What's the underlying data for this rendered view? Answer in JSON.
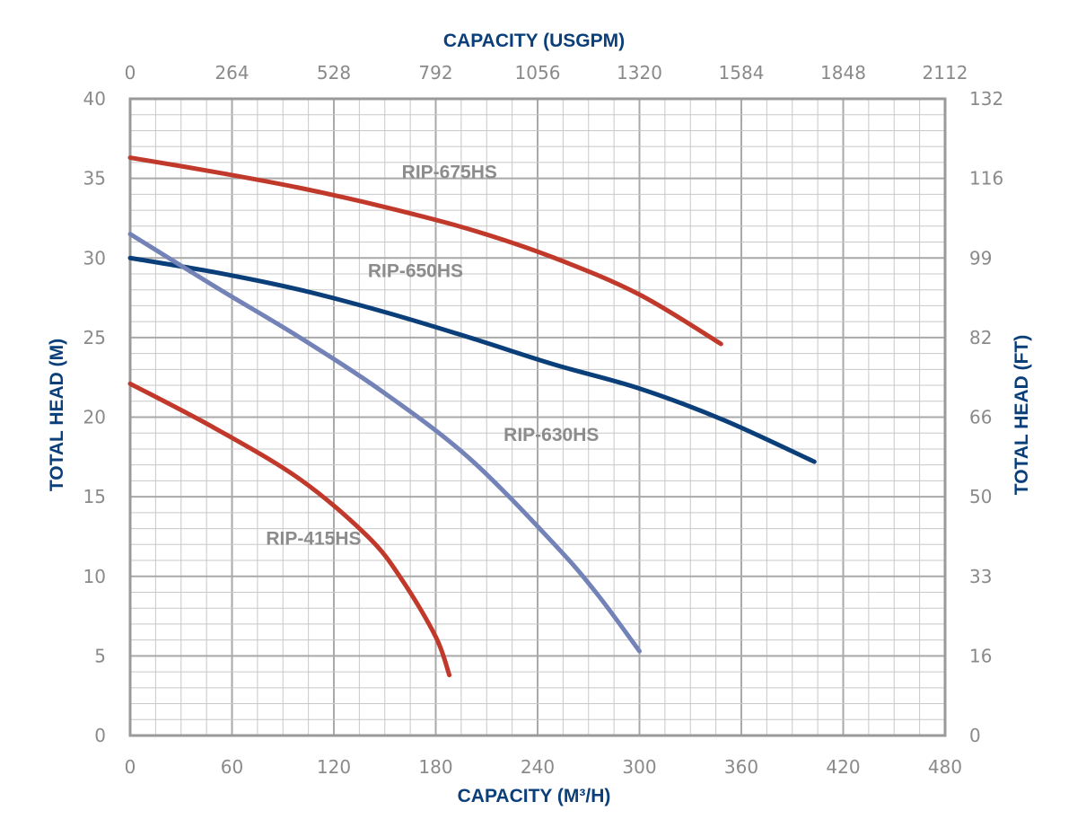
{
  "chart_data": {
    "type": "line",
    "title": "",
    "xlabel_bottom": "CAPACITY (M³/H)",
    "xlabel_top": "CAPACITY (USGPM)",
    "ylabel_left": "TOTAL HEAD (M)",
    "ylabel_right": "TOTAL HEAD (FT)",
    "xlim": [
      0,
      480
    ],
    "ylim": [
      0,
      40
    ],
    "x_ticks": [
      "0",
      "60",
      "120",
      "180",
      "240",
      "300",
      "360",
      "420",
      "480"
    ],
    "x_top_ticks": [
      "0",
      "264",
      "528",
      "792",
      "1056",
      "1320",
      "1584",
      "1848",
      "2112"
    ],
    "y_ticks": [
      "0",
      "5",
      "10",
      "15",
      "20",
      "25",
      "30",
      "35",
      "40"
    ],
    "y_right_ticks": [
      "0",
      "16",
      "33",
      "50",
      "66",
      "82",
      "99",
      "116",
      "132"
    ],
    "grid": true,
    "series": [
      {
        "name": "RIP-675HS",
        "color": "#c0392b",
        "label_at": [
          160,
          35
        ],
        "points": [
          [
            0,
            36.3
          ],
          [
            50,
            35.4
          ],
          [
            100,
            34.4
          ],
          [
            150,
            33.2
          ],
          [
            200,
            31.8
          ],
          [
            250,
            30.0
          ],
          [
            300,
            27.7
          ],
          [
            348,
            24.6
          ]
        ]
      },
      {
        "name": "RIP-650HS",
        "color": "#0b3f7a",
        "label_at": [
          140,
          28.8
        ],
        "points": [
          [
            0,
            30.0
          ],
          [
            50,
            29.1
          ],
          [
            100,
            28.0
          ],
          [
            150,
            26.6
          ],
          [
            200,
            25.0
          ],
          [
            250,
            23.3
          ],
          [
            300,
            21.8
          ],
          [
            350,
            19.8
          ],
          [
            403,
            17.2
          ]
        ]
      },
      {
        "name": "RIP-630HS",
        "color": "#7383b8",
        "label_at": [
          220,
          18.5
        ],
        "points": [
          [
            0,
            31.5
          ],
          [
            50,
            28.2
          ],
          [
            100,
            25.0
          ],
          [
            150,
            21.5
          ],
          [
            200,
            17.4
          ],
          [
            250,
            12.0
          ],
          [
            275,
            8.9
          ],
          [
            300,
            5.3
          ]
        ]
      },
      {
        "name": "RIP-415HS",
        "color": "#c0392b",
        "label_at": [
          80,
          12.0
        ],
        "points": [
          [
            0,
            22.1
          ],
          [
            50,
            19.3
          ],
          [
            100,
            16.1
          ],
          [
            140,
            12.5
          ],
          [
            160,
            9.8
          ],
          [
            180,
            6.2
          ],
          [
            188,
            3.8
          ]
        ]
      }
    ]
  }
}
